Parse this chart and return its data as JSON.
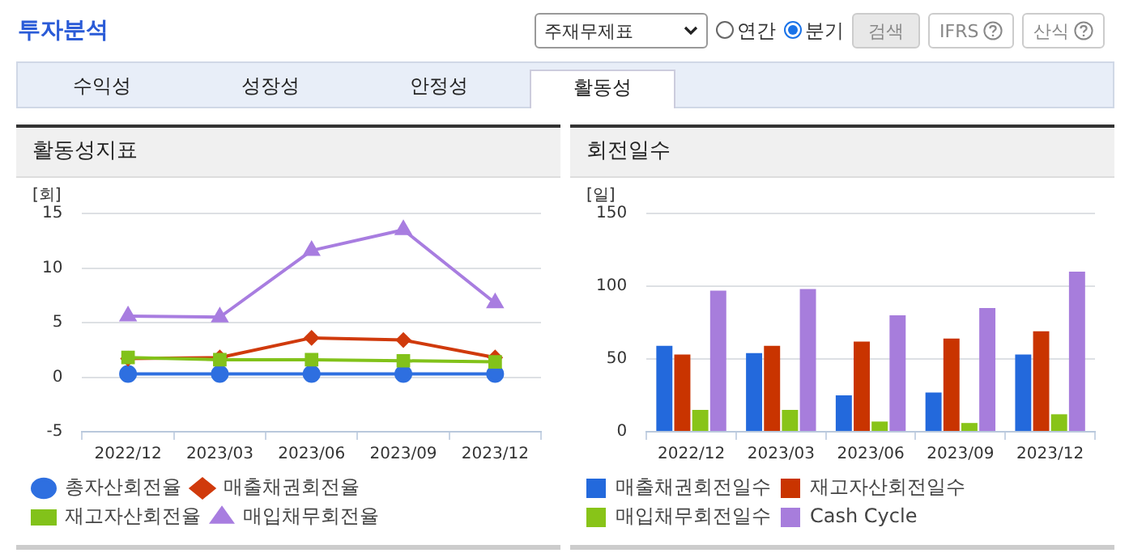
{
  "chart_data": [
    {
      "type": "line",
      "title": "활동성지표",
      "ylabel": "[회]",
      "categories": [
        "2022/12",
        "2023/03",
        "2023/06",
        "2023/09",
        "2023/12"
      ],
      "annotations": [
        "투자분석",
        "주재무제표",
        "연간",
        "분기",
        "검색",
        "IFRS",
        "산식",
        "수익성",
        "성장성",
        "안정성",
        "활동성"
      ],
      "series": [
        {
          "name": "총자산회전율",
          "color": "#2e6fe0",
          "marker": "circle",
          "values": [
            0.3,
            0.3,
            0.3,
            0.3,
            0.3
          ]
        },
        {
          "name": "매출채권회전율",
          "color": "#d03a0c",
          "marker": "diamond",
          "values": [
            1.7,
            1.8,
            3.6,
            3.4,
            1.8
          ]
        },
        {
          "name": "재고자산회전율",
          "color": "#82c21a",
          "marker": "square",
          "values": [
            1.8,
            1.6,
            1.6,
            1.5,
            1.4
          ]
        },
        {
          "name": "매입채무회전율",
          "color": "#a87de0",
          "marker": "triangle",
          "values": [
            5.6,
            5.5,
            11.6,
            13.5,
            6.8
          ]
        }
      ],
      "ylim": [
        -5,
        15
      ],
      "yticks": [
        -5,
        0,
        5,
        10,
        15
      ],
      "grid": "y",
      "legend": "bottom"
    },
    {
      "type": "bar",
      "title": "회전일수",
      "ylabel": "[일]",
      "categories": [
        "2022/12",
        "2023/03",
        "2023/06",
        "2023/09",
        "2023/12"
      ],
      "series": [
        {
          "name": "매출채권회전일수",
          "color": "#2369dc",
          "values": [
            59,
            54,
            25,
            27,
            53
          ]
        },
        {
          "name": "재고자산회전일수",
          "color": "#c93400",
          "values": [
            53,
            59,
            62,
            64,
            69
          ]
        },
        {
          "name": "매입채무회전일수",
          "color": "#88c418",
          "values": [
            15,
            15,
            7,
            6,
            12
          ]
        },
        {
          "name": "Cash Cycle",
          "color": "#a77ddc",
          "values": [
            97,
            98,
            80,
            85,
            110
          ]
        }
      ],
      "ylim": [
        0,
        150
      ],
      "yticks": [
        0,
        50,
        100,
        150
      ],
      "grid": "y",
      "legend": "bottom"
    }
  ]
}
